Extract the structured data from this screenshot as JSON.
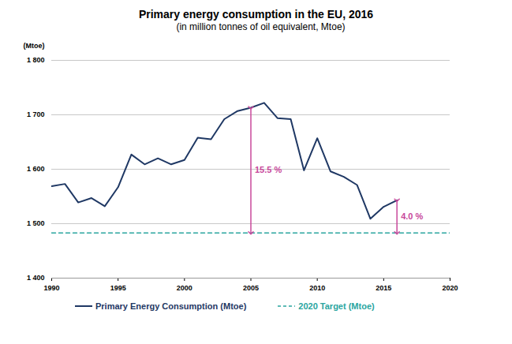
{
  "chart_data": {
    "type": "line",
    "title": "Primary energy consumption in the EU, 2016",
    "subtitle": "(in million tonnes of oil equivalent, Mtoe)",
    "y_label": "(Mtoe)",
    "x": [
      1990,
      1991,
      1992,
      1993,
      1994,
      1995,
      1996,
      1997,
      1998,
      1999,
      2000,
      2001,
      2002,
      2003,
      2004,
      2005,
      2006,
      2007,
      2008,
      2009,
      2010,
      2011,
      2012,
      2013,
      2014,
      2015,
      2016,
      2017,
      2018,
      2019,
      2020
    ],
    "series": [
      {
        "name": "Primary Energy Consumption (Mtoe)",
        "color": "#1f3864",
        "line_style": "solid",
        "values": [
          1569,
          1573,
          1539,
          1547,
          1532,
          1567,
          1627,
          1609,
          1620,
          1609,
          1617,
          1658,
          1655,
          1692,
          1707,
          1713,
          1722,
          1694,
          1692,
          1598,
          1657,
          1596,
          1586,
          1571,
          1509,
          1531,
          1543,
          null,
          null,
          null,
          null
        ]
      },
      {
        "name": "2020 Target (Mtoe)",
        "color": "#2aa59f",
        "line_style": "dashed",
        "values": [
          1483,
          1483,
          1483,
          1483,
          1483,
          1483,
          1483,
          1483,
          1483,
          1483,
          1483,
          1483,
          1483,
          1483,
          1483,
          1483,
          1483,
          1483,
          1483,
          1483,
          1483,
          1483,
          1483,
          1483,
          1483,
          1483,
          1483,
          1483,
          1483,
          1483,
          1483
        ]
      }
    ],
    "annotations": [
      {
        "text": "15.5 %",
        "x": 2005,
        "y_from": 1713,
        "y_to": 1483,
        "color": "#c8489b"
      },
      {
        "text": "4.0 %",
        "x": 2016,
        "y_from": 1543,
        "y_to": 1483,
        "color": "#c8489b"
      }
    ],
    "xlim": [
      1990,
      2020
    ],
    "xticks": [
      1990,
      1995,
      2000,
      2005,
      2010,
      2015,
      2020
    ],
    "ylim": [
      1400,
      1800
    ],
    "yticks": [
      {
        "value": 1400,
        "label": "1 400"
      },
      {
        "value": 1500,
        "label": "1 500"
      },
      {
        "value": 1600,
        "label": "1 600"
      },
      {
        "value": 1700,
        "label": "1 700"
      },
      {
        "value": 1800,
        "label": "1 800"
      }
    ],
    "grid": true,
    "legend": "bottom"
  }
}
